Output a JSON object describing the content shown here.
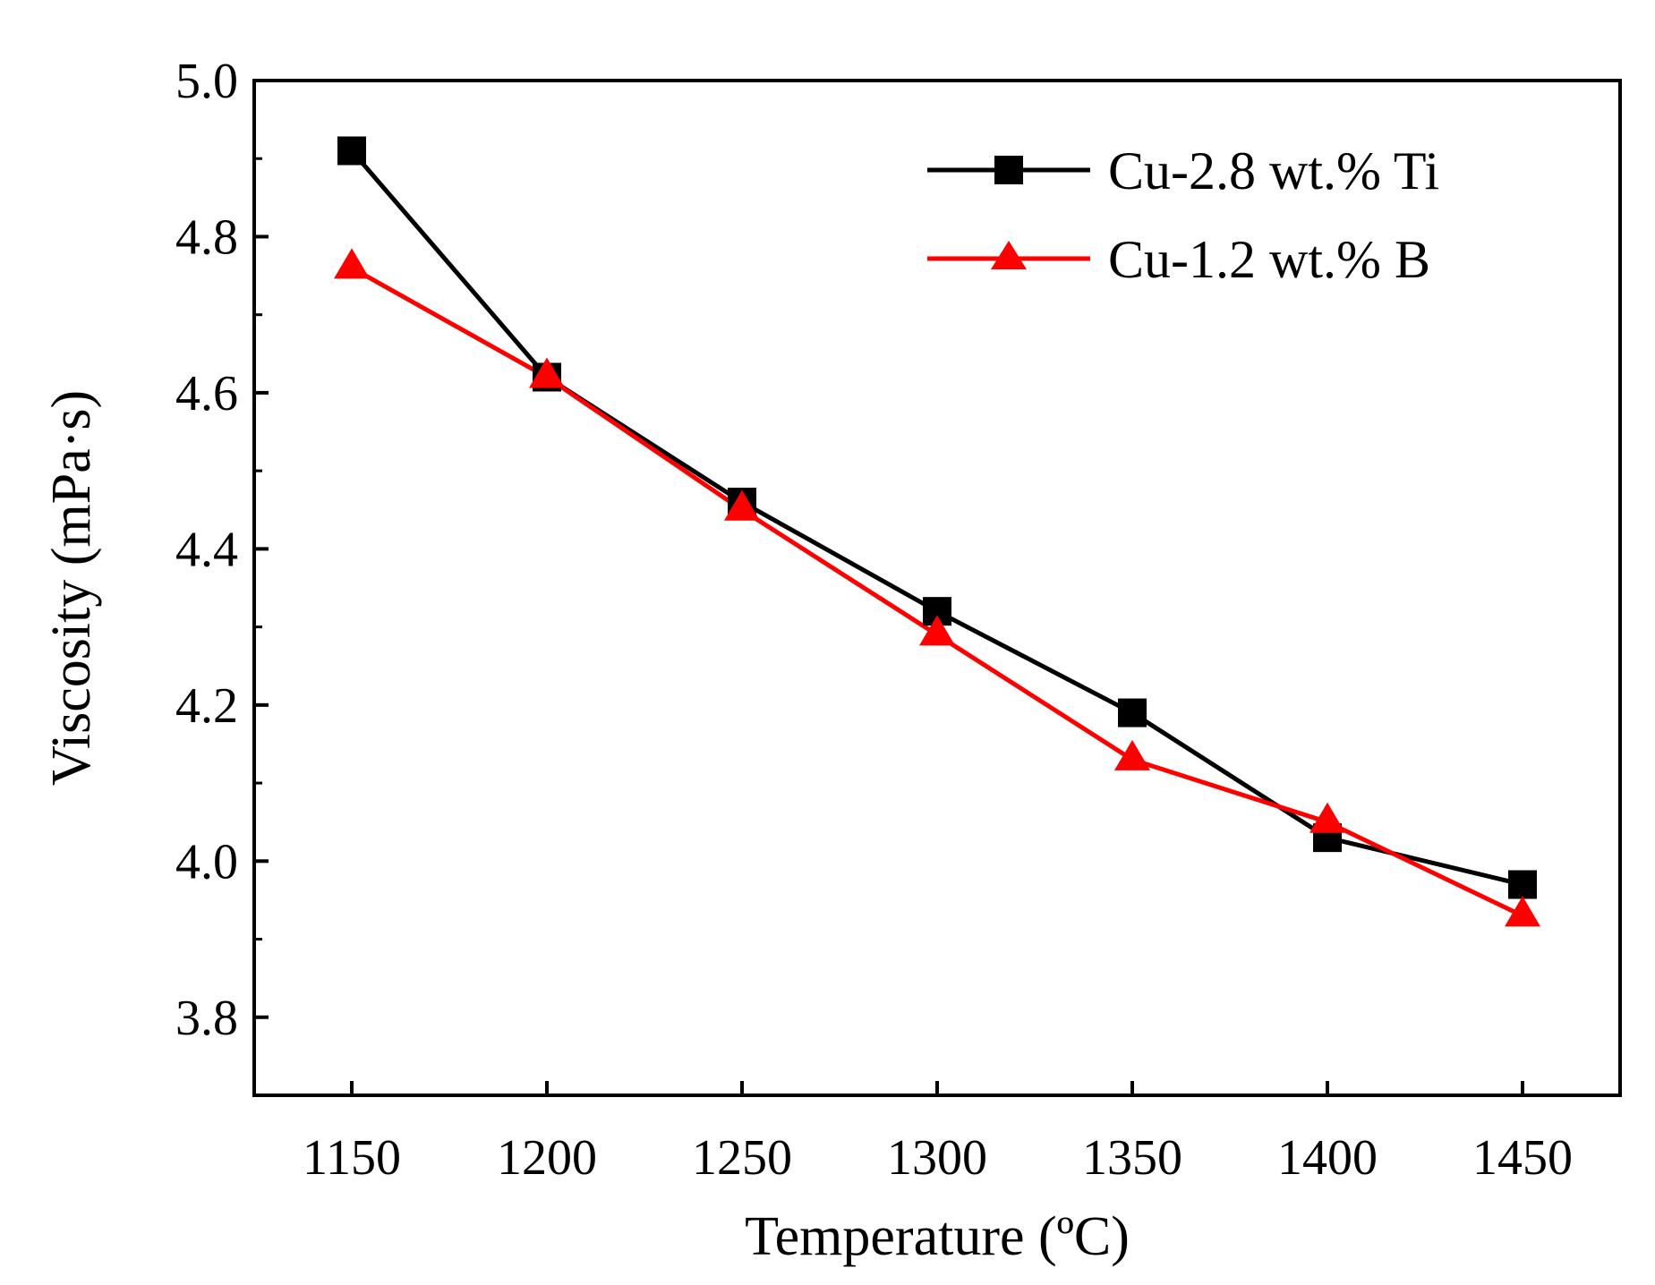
{
  "chart_data": {
    "type": "line",
    "title": "",
    "xlabel": "Temperature (ºC)",
    "ylabel": "Viscosity (mPa·s)",
    "xlim": [
      1125,
      1475
    ],
    "ylim": [
      3.7,
      5.0
    ],
    "x_ticks": [
      1150,
      1200,
      1250,
      1300,
      1350,
      1400,
      1450
    ],
    "x_tick_labels": [
      "1150",
      "1200",
      "1250",
      "1300",
      "1350",
      "1400",
      "1450"
    ],
    "y_ticks": [
      3.8,
      4.0,
      4.2,
      4.4,
      4.6,
      4.8,
      5.0
    ],
    "y_tick_labels": [
      "3.8",
      "4.0",
      "4.2",
      "4.4",
      "4.6",
      "4.8",
      "5.0"
    ],
    "y_minor_ticks": [
      3.7,
      3.9,
      4.1,
      4.3,
      4.5,
      4.7,
      4.9
    ],
    "x": [
      1150,
      1200,
      1250,
      1300,
      1350,
      1400,
      1450
    ],
    "legend_position": "top-right",
    "series": [
      {
        "name": "Cu-2.8 wt.% Ti",
        "marker": "square",
        "color": "#000000",
        "values": [
          4.91,
          4.62,
          4.46,
          4.32,
          4.19,
          4.03,
          3.97
        ]
      },
      {
        "name": "Cu-1.2 wt.% B",
        "marker": "triangle",
        "color": "#ff0000",
        "values": [
          4.76,
          4.62,
          4.45,
          4.29,
          4.13,
          4.05,
          3.93
        ]
      }
    ]
  }
}
